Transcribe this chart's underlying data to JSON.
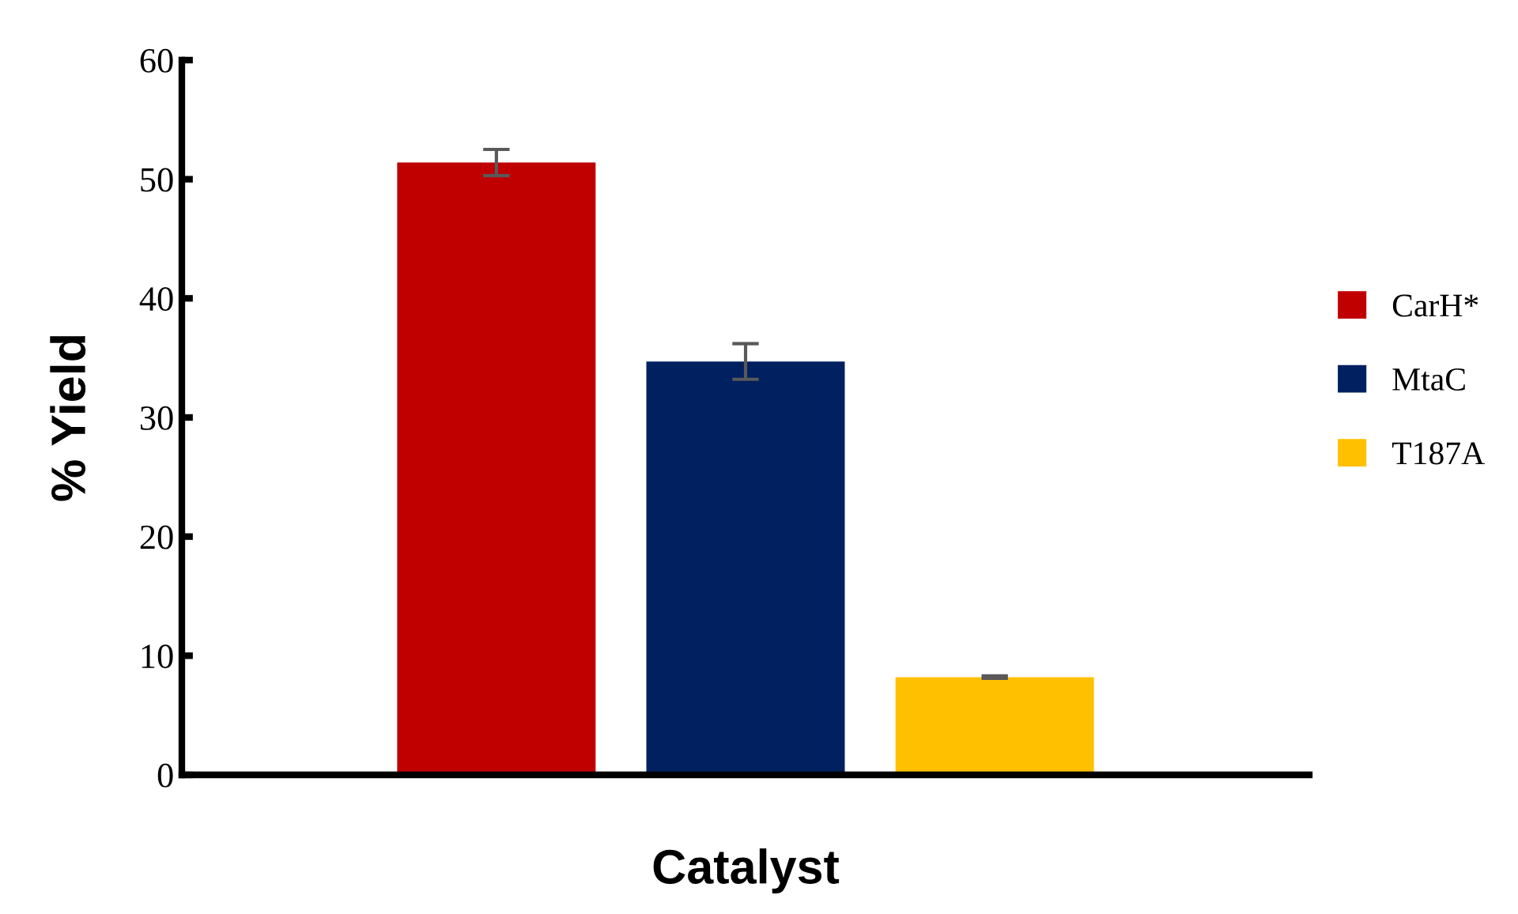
{
  "chart_data": {
    "type": "bar",
    "xlabel": "Catalyst",
    "ylabel": "% Yield",
    "categories": [
      null
    ],
    "series": [
      {
        "name": "CarH*",
        "color": "#c00000",
        "values": [
          51.4
        ],
        "errors": [
          1.1
        ]
      },
      {
        "name": "MtaC",
        "color": "#002060",
        "values": [
          34.7
        ],
        "errors": [
          1.5
        ]
      },
      {
        "name": "T187A",
        "color": "#ffc000",
        "values": [
          8.2
        ],
        "errors": [
          0.1
        ]
      }
    ],
    "ylim": [
      0,
      60
    ],
    "yticks": [
      0,
      10,
      20,
      30,
      40,
      50,
      60
    ],
    "grid": false,
    "legend": "right"
  }
}
